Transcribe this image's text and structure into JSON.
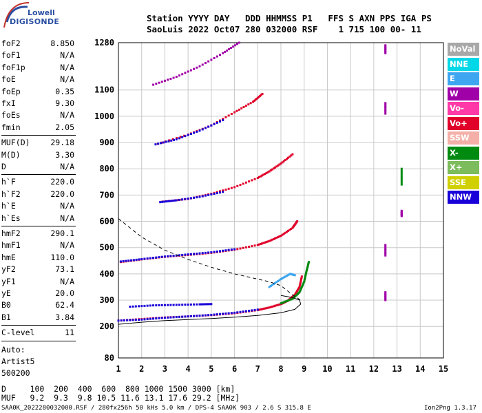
{
  "logo": {
    "line1": "Lowell",
    "line2": "DIGISONDE"
  },
  "header": {
    "line1": "Station YYYY DAY   DDD HHMMSS P1   FFS S AXN PPS IGA PS",
    "line2": "SaoLuis 2022 Oct07 280 032000 RSF    1 715 100 00- 11"
  },
  "params": [
    {
      "name": "foF2",
      "value": "8.850"
    },
    {
      "name": "foF1",
      "value": "N/A"
    },
    {
      "name": "foF1p",
      "value": "N/A"
    },
    {
      "name": "foE",
      "value": "N/A"
    },
    {
      "name": "foEp",
      "value": "0.35"
    },
    {
      "name": "fxI",
      "value": "9.30"
    },
    {
      "name": "foEs",
      "value": "N/A"
    },
    {
      "name": "fmin",
      "value": "2.05"
    },
    {
      "name": "MUF(D)",
      "value": "29.18"
    },
    {
      "name": "M(D)",
      "value": "3.30"
    },
    {
      "name": "D",
      "value": "N/A"
    },
    {
      "name": "h`F",
      "value": "220.0"
    },
    {
      "name": "h`F2",
      "value": "220.0"
    },
    {
      "name": "h`E",
      "value": "N/A"
    },
    {
      "name": "h`Es",
      "value": "N/A"
    },
    {
      "name": "hmF2",
      "value": "290.1"
    },
    {
      "name": "hmF1",
      "value": "N/A"
    },
    {
      "name": "hmE",
      "value": "110.0"
    },
    {
      "name": "yF2",
      "value": "73.1"
    },
    {
      "name": "yF1",
      "value": "N/A"
    },
    {
      "name": "yE",
      "value": "20.0"
    },
    {
      "name": "B0",
      "value": "62.4"
    },
    {
      "name": "B1",
      "value": "3.84"
    },
    {
      "name": "C-level",
      "value": "11"
    }
  ],
  "autoscaling": {
    "line1": "Auto:",
    "line2": "Artist5",
    "line3": "500200"
  },
  "legend": [
    {
      "label": "NoVal",
      "color": "#a8a8a8"
    },
    {
      "label": "NNE",
      "color": "#00d8e8"
    },
    {
      "label": "E",
      "color": "#3ea6f0"
    },
    {
      "label": "W",
      "color": "#a000a8"
    },
    {
      "label": "Vo-",
      "color": "#ff3aa8"
    },
    {
      "label": "Vo+",
      "color": "#e0002a"
    },
    {
      "label": "SSW",
      "color": "#f4b0a8"
    },
    {
      "label": "X-",
      "color": "#008a10"
    },
    {
      "label": "X+",
      "color": "#7cbc5c"
    },
    {
      "label": "SSE",
      "color": "#d0d000"
    },
    {
      "label": "NNW",
      "color": "#1800d8"
    }
  ],
  "footer": {
    "d_line": "D     100  200  400  600  800 1000 1500 3000 [km]",
    "muf_line": "MUF   9.2  9.3  9.8 10.5 11.6 13.1 17.6 29.2 [MHz]",
    "file_line": "SAA0K_2022280032000.RSF / 280fx256h 50 kHs 5.0 km / DPS-4 SAA0K 903 / 2.6 S 315.8 E",
    "version": "Ion2Png 1.3.17"
  },
  "chart_data": {
    "type": "scatter",
    "x_ticks": [
      1,
      2,
      3,
      4,
      5,
      6,
      7,
      8,
      9,
      10,
      11,
      12,
      13,
      14,
      15
    ],
    "y_ticks": [
      80,
      200,
      300,
      400,
      500,
      600,
      700,
      800,
      900,
      1000,
      1100,
      1280
    ],
    "xlim": [
      1,
      15
    ],
    "ylim": [
      80,
      1280
    ],
    "grid": true,
    "series": [
      {
        "color": "#e0002a",
        "points": [
          [
            1,
            222
          ],
          [
            2,
            228
          ],
          [
            3,
            234
          ],
          [
            4,
            238
          ],
          [
            5,
            243
          ],
          [
            6,
            250
          ],
          [
            7,
            262
          ],
          [
            7.5,
            272
          ],
          [
            8,
            285
          ],
          [
            8.3,
            298
          ],
          [
            8.6,
            320
          ],
          [
            8.8,
            350
          ],
          [
            8.9,
            390
          ]
        ]
      },
      {
        "color": "#1800d8",
        "points": [
          [
            1,
            222
          ],
          [
            2,
            226
          ],
          [
            3,
            233
          ],
          [
            4,
            238
          ],
          [
            5,
            244
          ],
          [
            6,
            252
          ],
          [
            7,
            264
          ]
        ]
      },
      {
        "color": "#008a10",
        "points": [
          [
            8,
            288
          ],
          [
            8.5,
            305
          ],
          [
            8.8,
            330
          ],
          [
            9.0,
            370
          ],
          [
            9.1,
            410
          ],
          [
            9.2,
            445
          ]
        ]
      },
      {
        "color": "#1800d8",
        "points": [
          [
            1.5,
            275
          ],
          [
            2.5,
            280
          ],
          [
            3.5,
            282
          ],
          [
            4.5,
            284
          ],
          [
            5,
            285
          ]
        ]
      },
      {
        "color": "#e0002a",
        "points": [
          [
            1.1,
            445
          ],
          [
            2,
            455
          ],
          [
            3,
            465
          ],
          [
            4,
            472
          ],
          [
            5,
            480
          ],
          [
            6,
            492
          ],
          [
            7,
            510
          ],
          [
            7.5,
            525
          ],
          [
            8,
            545
          ],
          [
            8.5,
            575
          ],
          [
            8.7,
            600
          ]
        ]
      },
      {
        "color": "#1800d8",
        "points": [
          [
            1.1,
            447
          ],
          [
            2,
            456
          ],
          [
            3,
            466
          ],
          [
            4,
            474
          ],
          [
            5,
            482
          ],
          [
            6,
            494
          ]
        ]
      },
      {
        "color": "#e0002a",
        "points": [
          [
            2.9,
            675
          ],
          [
            4,
            685
          ],
          [
            5,
            705
          ],
          [
            6,
            730
          ],
          [
            7,
            765
          ],
          [
            7.5,
            790
          ],
          [
            8,
            820
          ],
          [
            8.5,
            855
          ]
        ]
      },
      {
        "color": "#1800d8",
        "points": [
          [
            2.8,
            673
          ],
          [
            3.5,
            680
          ],
          [
            4.5,
            693
          ],
          [
            5.5,
            712
          ]
        ]
      },
      {
        "color": "#e0002a",
        "points": [
          [
            2.7,
            895
          ],
          [
            4,
            930
          ],
          [
            5,
            965
          ],
          [
            6,
            1015
          ],
          [
            6.8,
            1055
          ],
          [
            7.2,
            1085
          ]
        ]
      },
      {
        "color": "#1800d8",
        "points": [
          [
            2.6,
            893
          ],
          [
            3.5,
            912
          ],
          [
            4.5,
            945
          ],
          [
            5.5,
            985
          ]
        ]
      },
      {
        "color": "#a000a8",
        "points": [
          [
            2.5,
            1120
          ],
          [
            3.5,
            1150
          ],
          [
            4.5,
            1190
          ],
          [
            5.5,
            1240
          ],
          [
            6.2,
            1280
          ]
        ]
      },
      {
        "color": "#a000a8",
        "points": [
          [
            12.5,
            1240
          ],
          [
            12.5,
            1270
          ]
        ]
      },
      {
        "color": "#a000a8",
        "points": [
          [
            12.5,
            1010
          ],
          [
            12.5,
            1050
          ]
        ]
      },
      {
        "color": "#a000a8",
        "points": [
          [
            12.5,
            300
          ],
          [
            12.5,
            330
          ]
        ]
      },
      {
        "color": "#a000a8",
        "points": [
          [
            12.5,
            470
          ],
          [
            12.5,
            510
          ]
        ]
      },
      {
        "color": "#a000a8",
        "points": [
          [
            13.2,
            620
          ],
          [
            13.2,
            640
          ]
        ]
      },
      {
        "color": "#008a10",
        "points": [
          [
            13.2,
            740
          ],
          [
            13.2,
            800
          ]
        ]
      },
      {
        "color": "#3ea6f0",
        "points": [
          [
            7.5,
            350
          ],
          [
            8,
            380
          ],
          [
            8.4,
            400
          ],
          [
            8.6,
            395
          ]
        ]
      }
    ],
    "profile_solid": [
      [
        1,
        208
      ],
      [
        2,
        216
      ],
      [
        3,
        222
      ],
      [
        4,
        226
      ],
      [
        5,
        230
      ],
      [
        6,
        235
      ],
      [
        7,
        242
      ],
      [
        8,
        252
      ],
      [
        8.6,
        265
      ],
      [
        8.85,
        285
      ],
      [
        8.8,
        300
      ],
      [
        8.5,
        310
      ],
      [
        8.0,
        318
      ]
    ],
    "profile_dashed": [
      [
        1,
        610
      ],
      [
        2,
        540
      ],
      [
        3,
        490
      ],
      [
        4,
        455
      ],
      [
        5,
        425
      ],
      [
        6,
        400
      ],
      [
        7,
        380
      ],
      [
        7.5,
        370
      ],
      [
        8,
        355
      ],
      [
        8.5,
        320
      ],
      [
        8.85,
        300
      ]
    ]
  }
}
